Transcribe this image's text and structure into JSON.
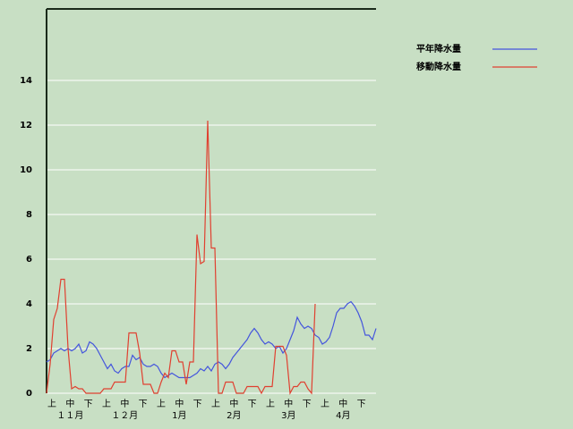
{
  "chart_data": {
    "type": "line",
    "ylim": [
      0,
      17.2
    ],
    "yticks": [
      0,
      2,
      4,
      6,
      8,
      10,
      12,
      14
    ],
    "grid": true,
    "period_labels": [
      "上",
      "中",
      "下",
      "上",
      "中",
      "下",
      "上",
      "中",
      "下",
      "上",
      "中",
      "下",
      "上",
      "中",
      "下",
      "上",
      "中",
      "下"
    ],
    "month_labels": [
      "１１月",
      "１２月",
      "1月",
      "2月",
      "3月",
      "4月"
    ],
    "legend": "right",
    "series": [
      {
        "name": "平年降水量",
        "color": "#4455dd",
        "values": [
          1.4,
          1.5,
          1.8,
          1.9,
          2.0,
          1.9,
          2.0,
          1.9,
          2.0,
          2.2,
          1.8,
          1.9,
          2.3,
          2.2,
          2.0,
          1.7,
          1.4,
          1.1,
          1.3,
          1.0,
          0.9,
          1.1,
          1.2,
          1.2,
          1.7,
          1.5,
          1.6,
          1.3,
          1.2,
          1.2,
          1.3,
          1.2,
          0.9,
          0.7,
          0.8,
          0.9,
          0.8,
          0.7,
          0.7,
          0.7,
          0.7,
          0.8,
          0.9,
          1.1,
          1.0,
          1.2,
          1.0,
          1.3,
          1.4,
          1.3,
          1.1,
          1.3,
          1.6,
          1.8,
          2.0,
          2.2,
          2.4,
          2.7,
          2.9,
          2.7,
          2.4,
          2.2,
          2.3,
          2.2,
          2.0,
          2.1,
          1.8,
          2.0,
          2.4,
          2.8,
          3.4,
          3.1,
          2.9,
          3.0,
          2.9,
          2.6,
          2.5,
          2.2,
          2.3,
          2.5,
          3.0,
          3.6,
          3.8,
          3.8,
          4.0,
          4.1,
          3.9,
          3.6,
          3.2,
          2.6,
          2.6,
          2.4,
          2.9
        ]
      },
      {
        "name": "移動降水量",
        "color": "#e04030",
        "values": [
          0,
          1.3,
          3.3,
          3.8,
          5.1,
          5.1,
          2.0,
          0.2,
          0.3,
          0.2,
          0.2,
          0,
          0,
          0,
          0,
          0,
          0.2,
          0.2,
          0.2,
          0.5,
          0.5,
          0.5,
          0.5,
          2.7,
          2.7,
          2.7,
          1.8,
          0.4,
          0.4,
          0.4,
          0,
          0,
          0.5,
          0.9,
          0.7,
          1.9,
          1.9,
          1.4,
          1.4,
          0.4,
          1.4,
          1.4,
          7.1,
          5.8,
          5.9,
          12.2,
          6.5,
          6.5,
          0,
          0,
          0.5,
          0.5,
          0.5,
          0,
          0,
          0,
          0.3,
          0.3,
          0.3,
          0.3,
          0,
          0.3,
          0.3,
          0.3,
          2.1,
          2.1,
          2.1,
          1.7,
          0,
          0.3,
          0.3,
          0.5,
          0.5,
          0.2,
          0,
          4.0,
          null,
          null,
          null,
          null,
          null,
          null,
          null,
          null,
          null,
          null,
          null,
          null,
          null,
          null,
          null,
          null,
          null
        ]
      }
    ]
  }
}
